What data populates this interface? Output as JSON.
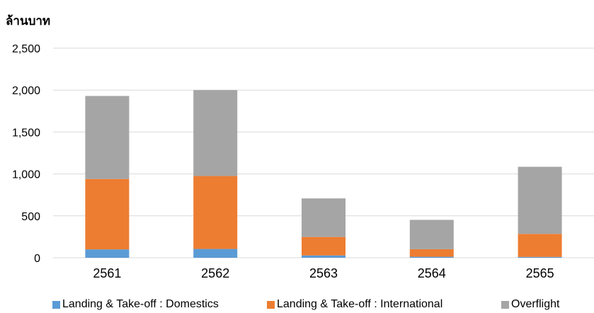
{
  "chart_data": {
    "type": "bar",
    "stacked": true,
    "unit_label": "ล้านบาท",
    "categories": [
      "2561",
      "2562",
      "2563",
      "2564",
      "2565"
    ],
    "series": [
      {
        "name": "Landing & Take-off : Domestics",
        "color": "#5B9BD5",
        "values": [
          100,
          105,
          28,
          12,
          10
        ]
      },
      {
        "name": "Landing & Take-off : International",
        "color": "#ED7D31",
        "values": [
          840,
          870,
          220,
          90,
          275
        ]
      },
      {
        "name": "Overflight",
        "color": "#A5A5A5",
        "values": [
          990,
          1025,
          460,
          350,
          800
        ]
      }
    ],
    "ylim": [
      0,
      2500
    ],
    "yticks": [
      "0",
      "500",
      "1,000",
      "1,500",
      "2,000",
      "2,500"
    ],
    "ytick_values": [
      0,
      500,
      1000,
      1500,
      2000,
      2500
    ],
    "grid": true,
    "legend_position": "bottom"
  }
}
